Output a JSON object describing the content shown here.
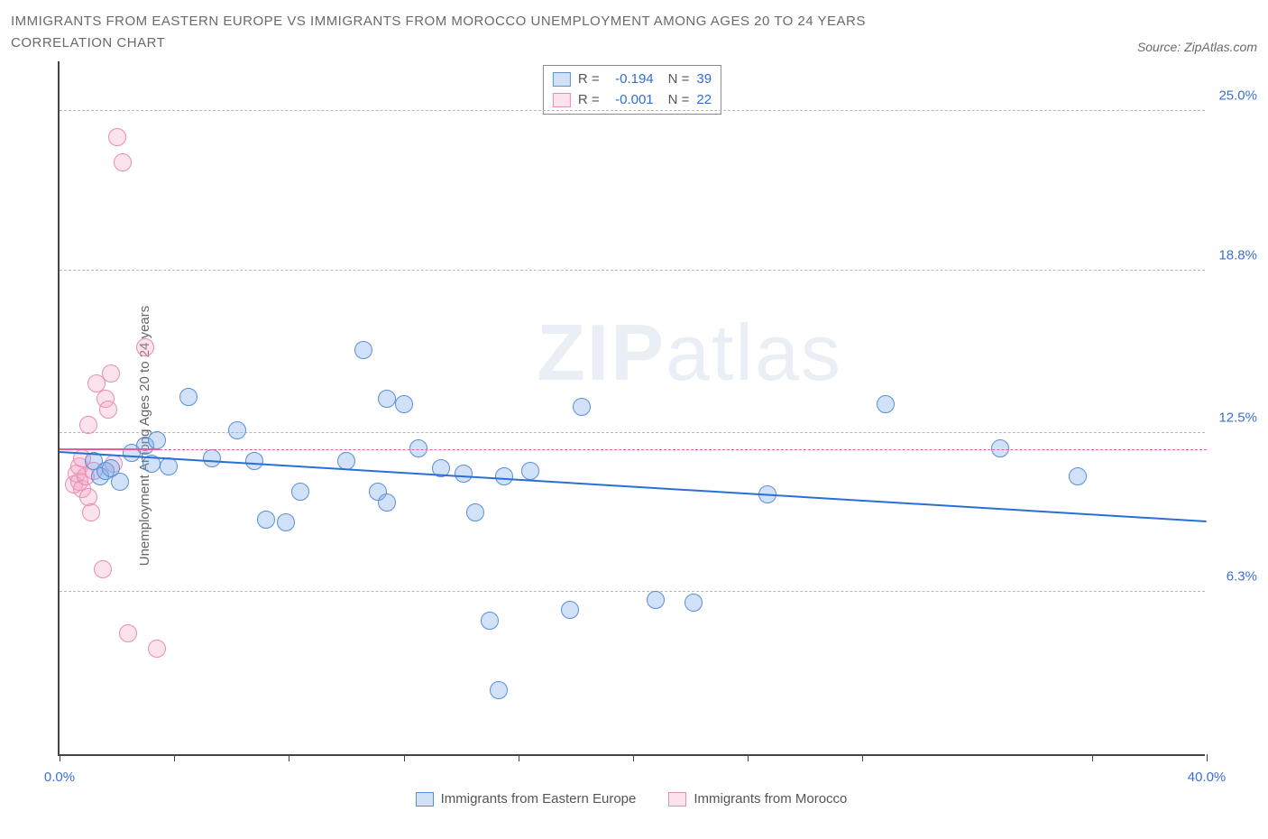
{
  "title_line1": "IMMIGRANTS FROM EASTERN EUROPE VS IMMIGRANTS FROM MOROCCO UNEMPLOYMENT AMONG AGES 20 TO 24 YEARS",
  "title_line2": "CORRELATION CHART",
  "source_label": "Source: ZipAtlas.com",
  "ylabel": "Unemployment Among Ages 20 to 24 years",
  "watermark_bold": "ZIP",
  "watermark_light": "atlas",
  "chart": {
    "type": "scatter",
    "xlim": [
      0,
      40
    ],
    "ylim": [
      0,
      27
    ],
    "x_tick_positions": [
      0,
      4,
      8,
      12,
      16,
      20,
      24,
      28,
      36,
      40
    ],
    "x_tick_labels": {
      "0": "0.0%",
      "40": "40.0%"
    },
    "y_ticks": [
      {
        "v": 6.3,
        "label": "6.3%"
      },
      {
        "v": 12.5,
        "label": "12.5%"
      },
      {
        "v": 18.8,
        "label": "18.8%"
      },
      {
        "v": 25.0,
        "label": "25.0%"
      }
    ],
    "y_tick_color": "#3b6fd4",
    "x_tick_color": "#3b6fd4",
    "grid_color": "#b8b8b8",
    "background_color": "#ffffff",
    "axis_color": "#444444",
    "marker_radius": 10,
    "series": [
      {
        "name": "Immigrants from Eastern Europe",
        "fill": "rgba(120,170,235,0.35)",
        "stroke": "#5a8fd6",
        "R_label": "R =",
        "R_value": "-0.194",
        "N_label": "N =",
        "N_value": "39",
        "trend": {
          "x1": 0,
          "y1": 11.7,
          "x2": 40,
          "y2": 9.0,
          "color": "#2a6fd6",
          "width": 2.5,
          "dash": false
        },
        "points": [
          [
            1.2,
            11.4
          ],
          [
            1.4,
            10.8
          ],
          [
            1.6,
            11.0
          ],
          [
            1.8,
            11.1
          ],
          [
            2.1,
            10.6
          ],
          [
            2.5,
            11.7
          ],
          [
            3.0,
            12.0
          ],
          [
            3.2,
            11.3
          ],
          [
            3.4,
            12.2
          ],
          [
            3.8,
            11.2
          ],
          [
            4.5,
            13.9
          ],
          [
            5.3,
            11.5
          ],
          [
            6.2,
            12.6
          ],
          [
            6.8,
            11.4
          ],
          [
            7.2,
            9.1
          ],
          [
            7.9,
            9.0
          ],
          [
            8.4,
            10.2
          ],
          [
            10.0,
            11.4
          ],
          [
            10.6,
            15.7
          ],
          [
            11.1,
            10.2
          ],
          [
            11.4,
            9.8
          ],
          [
            11.4,
            13.8
          ],
          [
            12.0,
            13.6
          ],
          [
            12.5,
            11.9
          ],
          [
            13.3,
            11.1
          ],
          [
            14.1,
            10.9
          ],
          [
            14.5,
            9.4
          ],
          [
            15.0,
            5.2
          ],
          [
            15.3,
            2.5
          ],
          [
            15.5,
            10.8
          ],
          [
            16.4,
            11.0
          ],
          [
            17.8,
            5.6
          ],
          [
            18.2,
            13.5
          ],
          [
            20.8,
            6.0
          ],
          [
            22.1,
            5.9
          ],
          [
            24.7,
            10.1
          ],
          [
            28.8,
            13.6
          ],
          [
            32.8,
            11.9
          ],
          [
            35.5,
            10.8
          ]
        ]
      },
      {
        "name": "Immigrants from Morocco",
        "fill": "rgba(245,160,195,0.30)",
        "stroke": "#e58fb3",
        "R_label": "R =",
        "R_value": "-0.001",
        "N_label": "N =",
        "N_value": "22",
        "trend_solid": {
          "x1": 0,
          "y1": 11.8,
          "x2": 3.5,
          "y2": 11.8,
          "color": "#e85c9a",
          "width": 2.5
        },
        "trend_dashed": {
          "x1": 3.5,
          "y1": 11.8,
          "x2": 40,
          "y2": 11.8,
          "color": "#e85c9a",
          "width": 1.2
        },
        "points": [
          [
            0.5,
            10.5
          ],
          [
            0.6,
            10.9
          ],
          [
            0.7,
            11.2
          ],
          [
            0.7,
            10.6
          ],
          [
            0.8,
            10.3
          ],
          [
            0.8,
            11.5
          ],
          [
            0.9,
            10.8
          ],
          [
            1.0,
            12.8
          ],
          [
            1.0,
            10.0
          ],
          [
            1.1,
            9.4
          ],
          [
            1.2,
            11.0
          ],
          [
            1.3,
            14.4
          ],
          [
            1.5,
            7.2
          ],
          [
            1.6,
            13.8
          ],
          [
            1.7,
            13.4
          ],
          [
            1.8,
            14.8
          ],
          [
            1.9,
            11.3
          ],
          [
            2.0,
            24.0
          ],
          [
            2.2,
            23.0
          ],
          [
            2.4,
            4.7
          ],
          [
            3.0,
            15.8
          ],
          [
            3.4,
            4.1
          ]
        ]
      }
    ],
    "legend_top_value_color": "#2a6fd6"
  }
}
